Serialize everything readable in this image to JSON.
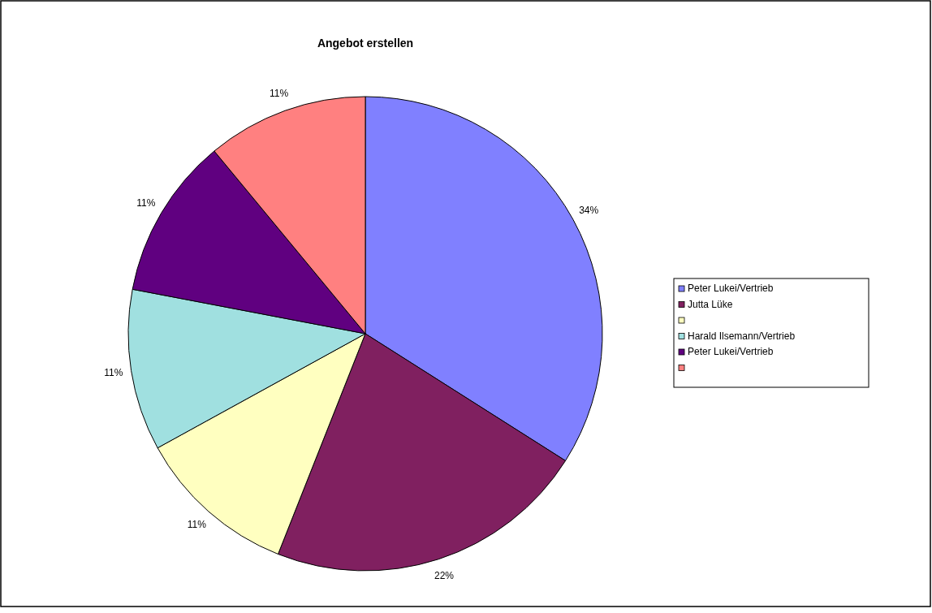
{
  "chart_data": {
    "type": "pie",
    "title": "Angebot erstellen",
    "categories": [
      "Peter Lukei/Vertrieb",
      "Jutta Lüke",
      null,
      "Harald Ilsemann/Vertrieb",
      "Peter Lukei/Vertrieb",
      null
    ],
    "values": [
      34,
      22,
      11,
      11,
      11,
      11
    ],
    "colors": [
      "#8080ff",
      "#802060",
      "#ffffc0",
      "#a0e0e0",
      "#600080",
      "#ff8080"
    ],
    "value_labels": [
      "34%",
      "22%",
      "11%",
      "11%",
      "11%",
      "11%"
    ],
    "legend": "right"
  }
}
